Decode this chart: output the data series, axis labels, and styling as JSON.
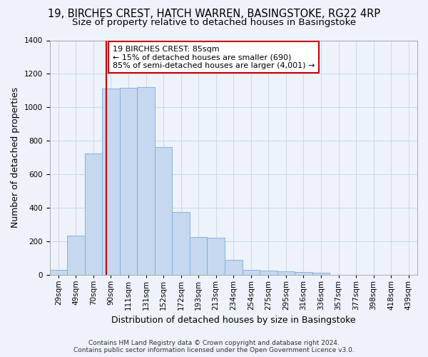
{
  "title_line1": "19, BIRCHES CREST, HATCH WARREN, BASINGSTOKE, RG22 4RP",
  "title_line2": "Size of property relative to detached houses in Basingstoke",
  "xlabel": "Distribution of detached houses by size in Basingstoke",
  "ylabel": "Number of detached properties",
  "footnote": "Contains HM Land Registry data © Crown copyright and database right 2024.\nContains public sector information licensed under the Open Government Licence v3.0.",
  "bar_labels": [
    "29sqm",
    "49sqm",
    "70sqm",
    "90sqm",
    "111sqm",
    "131sqm",
    "152sqm",
    "172sqm",
    "193sqm",
    "213sqm",
    "234sqm",
    "254sqm",
    "275sqm",
    "295sqm",
    "316sqm",
    "336sqm",
    "357sqm",
    "377sqm",
    "398sqm",
    "418sqm",
    "439sqm"
  ],
  "bar_values": [
    30,
    235,
    725,
    1110,
    1115,
    1120,
    760,
    375,
    225,
    220,
    90,
    30,
    25,
    20,
    15,
    10,
    0,
    0,
    0,
    0,
    0
  ],
  "bar_color": "#c5d8f0",
  "bar_edge_color": "#7aadd4",
  "annotation_text": "19 BIRCHES CREST: 85sqm\n← 15% of detached houses are smaller (690)\n85% of semi-detached houses are larger (4,001) →",
  "annotation_box_color": "#ffffff",
  "annotation_box_edge": "#cc0000",
  "vline_color": "#cc0000",
  "ylim": [
    0,
    1400
  ],
  "yticks": [
    0,
    200,
    400,
    600,
    800,
    1000,
    1200,
    1400
  ],
  "grid_color": "#d0d8e8",
  "background_color": "#eef2fa",
  "title_fontsize": 10.5,
  "subtitle_fontsize": 9.5,
  "axis_label_fontsize": 9,
  "tick_fontsize": 7.5,
  "footnote_fontsize": 6.5
}
